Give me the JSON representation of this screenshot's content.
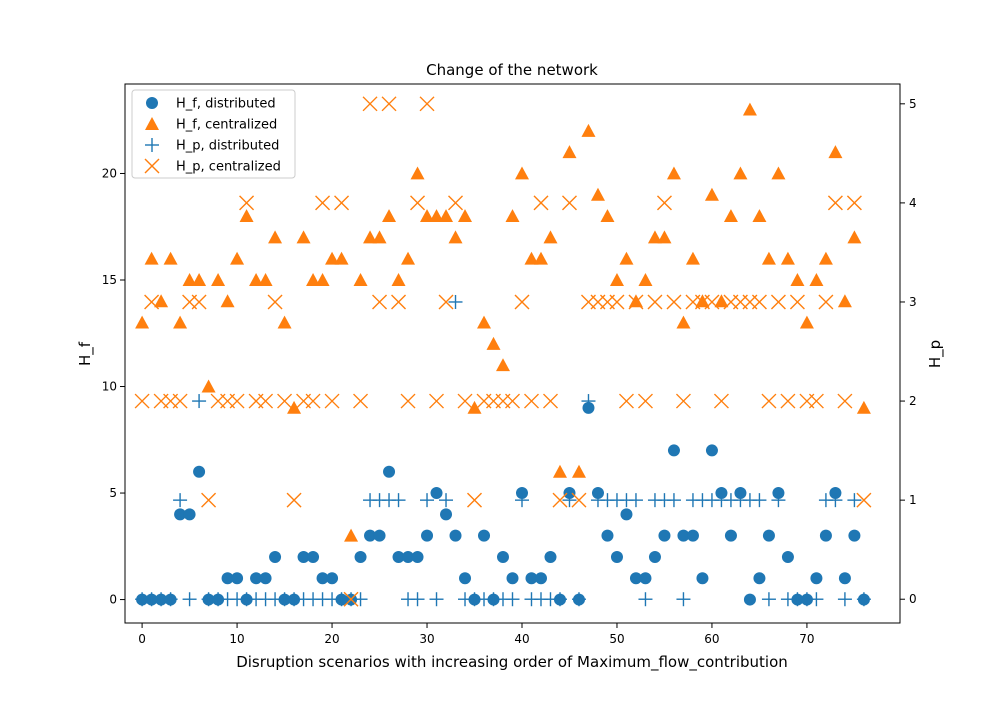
{
  "chart_data": {
    "type": "scatter",
    "title": "Change of the network",
    "xlabel": "Disruption scenarios with increasing order of Maximum_flow_contribution",
    "ylabel_left": "H_f",
    "ylabel_right": "H_p",
    "xlim": [
      -1.8,
      79.8
    ],
    "ylim_left": [
      -1.1,
      24.2
    ],
    "ylim_right": [
      -0.24,
      5.2
    ],
    "xticks": [
      0,
      10,
      20,
      30,
      40,
      50,
      60,
      70
    ],
    "yticks_left": [
      0,
      5,
      10,
      15,
      20
    ],
    "yticks_right": [
      0,
      1,
      2,
      3,
      4,
      5
    ],
    "legend_position": "top-left",
    "colors": {
      "distributed": "#1f77b4",
      "centralized": "#ff7f0e"
    },
    "x": [
      0,
      1,
      2,
      3,
      4,
      5,
      6,
      7,
      8,
      9,
      10,
      11,
      12,
      13,
      14,
      15,
      16,
      17,
      18,
      19,
      20,
      21,
      22,
      23,
      24,
      25,
      26,
      27,
      28,
      29,
      30,
      31,
      32,
      33,
      34,
      35,
      36,
      37,
      38,
      39,
      40,
      41,
      42,
      43,
      44,
      45,
      46,
      47,
      48,
      49,
      50,
      51,
      52,
      53,
      54,
      55,
      56,
      57,
      58,
      59,
      60,
      61,
      62,
      63,
      64,
      65,
      66,
      67,
      68,
      69,
      70,
      71,
      72,
      73,
      74,
      75,
      76
    ],
    "series": [
      {
        "name": "H_f, distributed",
        "marker": "circle",
        "axis": "left",
        "values": [
          0,
          0,
          0,
          0,
          4,
          4,
          6,
          0,
          0,
          1,
          1,
          0,
          1,
          1,
          2,
          0,
          0,
          2,
          2,
          1,
          1,
          0,
          0,
          2,
          3,
          3,
          6,
          2,
          2,
          2,
          3,
          5,
          4,
          3,
          1,
          0,
          3,
          0,
          2,
          1,
          5,
          1,
          1,
          2,
          0,
          5,
          0,
          9,
          5,
          3,
          2,
          4,
          1,
          1,
          2,
          3,
          7,
          3,
          3,
          1,
          7,
          5,
          3,
          5,
          0,
          1,
          3,
          5,
          2,
          0,
          0,
          1,
          3,
          5,
          1,
          3,
          0
        ]
      },
      {
        "name": "H_f, centralized",
        "marker": "triangle",
        "axis": "left",
        "values": [
          13,
          16,
          14,
          16,
          13,
          15,
          15,
          10,
          15,
          14,
          16,
          18,
          15,
          15,
          17,
          13,
          9,
          17,
          15,
          15,
          16,
          16,
          3,
          15,
          17,
          17,
          18,
          15,
          16,
          20,
          18,
          18,
          18,
          17,
          18,
          9,
          13,
          12,
          11,
          18,
          20,
          16,
          16,
          17,
          6,
          21,
          6,
          22,
          19,
          18,
          15,
          16,
          14,
          15,
          17,
          17,
          20,
          13,
          16,
          14,
          19,
          14,
          18,
          20,
          23,
          18,
          16,
          20,
          16,
          15,
          13,
          15,
          16,
          21,
          14,
          17,
          9
        ]
      },
      {
        "name": "H_p, distributed",
        "marker": "plus",
        "axis": "right",
        "values": [
          0,
          0,
          0,
          0,
          1,
          0,
          2,
          0,
          0,
          0,
          0,
          0,
          0,
          0,
          0,
          0,
          0,
          0,
          0,
          0,
          0,
          0,
          0,
          0,
          1,
          1,
          1,
          1,
          0,
          0,
          1,
          0,
          1,
          3,
          0,
          0,
          0,
          0,
          0,
          0,
          1,
          0,
          0,
          0,
          0,
          1,
          0,
          2,
          1,
          1,
          1,
          1,
          1,
          0,
          1,
          1,
          1,
          0,
          1,
          1,
          1,
          1,
          1,
          1,
          1,
          1,
          0,
          1,
          0,
          0,
          0,
          0,
          1,
          1,
          0,
          1,
          0
        ]
      },
      {
        "name": "H_p, centralized",
        "marker": "x",
        "axis": "right",
        "values": [
          2,
          3,
          2,
          2,
          2,
          3,
          3,
          1,
          2,
          2,
          2,
          4,
          2,
          2,
          3,
          2,
          1,
          2,
          2,
          4,
          2,
          4,
          0,
          2,
          5,
          3,
          5,
          3,
          2,
          4,
          5,
          2,
          3,
          4,
          2,
          1,
          2,
          2,
          2,
          2,
          3,
          2,
          4,
          2,
          1,
          4,
          1,
          3,
          3,
          3,
          3,
          2,
          3,
          2,
          3,
          4,
          3,
          2,
          3,
          3,
          3,
          2,
          3,
          3,
          3,
          3,
          2,
          3,
          2,
          3,
          2,
          2,
          3,
          4,
          2,
          4,
          1
        ]
      }
    ]
  }
}
